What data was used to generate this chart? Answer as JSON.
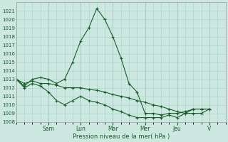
{
  "xlabel": "Pression niveau de la mer( hPa )",
  "bg_color": "#cce8e0",
  "grid_color": "#aad4cc",
  "line_color": "#1a5c2a",
  "ylim": [
    1008,
    1022
  ],
  "yticks": [
    1008,
    1009,
    1010,
    1011,
    1012,
    1013,
    1014,
    1015,
    1016,
    1017,
    1018,
    1019,
    1020,
    1021
  ],
  "day_labels": [
    "Sam",
    "Lun",
    "Mar",
    "Mer",
    "Jeu",
    "V"
  ],
  "day_tick_x": [
    24,
    48,
    72,
    96,
    120,
    144
  ],
  "xlim": [
    0,
    156
  ],
  "series1_x": [
    0,
    6,
    12,
    18,
    24,
    30,
    36,
    42,
    48,
    54,
    60,
    66,
    72,
    78,
    84,
    90,
    96,
    102,
    108,
    114,
    120,
    126,
    132,
    138,
    144
  ],
  "series1_y": [
    1013,
    1012.2,
    1013.0,
    1013.2,
    1013.0,
    1012.5,
    1013.0,
    1015.0,
    1017.5,
    1019.0,
    1021.3,
    1020.0,
    1018.0,
    1015.5,
    1012.5,
    1011.5,
    1009.0,
    1009.0,
    1008.8,
    1009.0,
    1009.0,
    1009.2,
    1009.5,
    1009.5,
    1009.5
  ],
  "series2_x": [
    0,
    6,
    12,
    18,
    24,
    30,
    36,
    42,
    48,
    54,
    60,
    66,
    72,
    78,
    84,
    90,
    96,
    102,
    108,
    114,
    120,
    126,
    132,
    138,
    144
  ],
  "series2_y": [
    1013.0,
    1012.5,
    1012.8,
    1012.5,
    1012.5,
    1012.3,
    1012.0,
    1012.0,
    1012.0,
    1011.8,
    1011.7,
    1011.5,
    1011.2,
    1011.0,
    1010.8,
    1010.5,
    1010.3,
    1010.0,
    1009.8,
    1009.5,
    1009.2,
    1009.0,
    1009.0,
    1009.0,
    1009.5
  ],
  "series3_x": [
    0,
    6,
    12,
    18,
    24,
    30,
    36,
    42,
    48,
    54,
    60,
    66,
    72,
    78,
    84,
    90,
    96,
    102,
    108,
    114,
    120,
    126,
    132,
    138,
    144
  ],
  "series3_y": [
    1013.0,
    1012.0,
    1012.5,
    1012.2,
    1011.5,
    1010.5,
    1010.0,
    1010.5,
    1011.0,
    1010.5,
    1010.3,
    1010.0,
    1009.5,
    1009.2,
    1008.8,
    1008.5,
    1008.5,
    1008.5,
    1008.5,
    1008.8,
    1008.5,
    1009.0,
    1009.5,
    1009.5,
    1009.5
  ]
}
